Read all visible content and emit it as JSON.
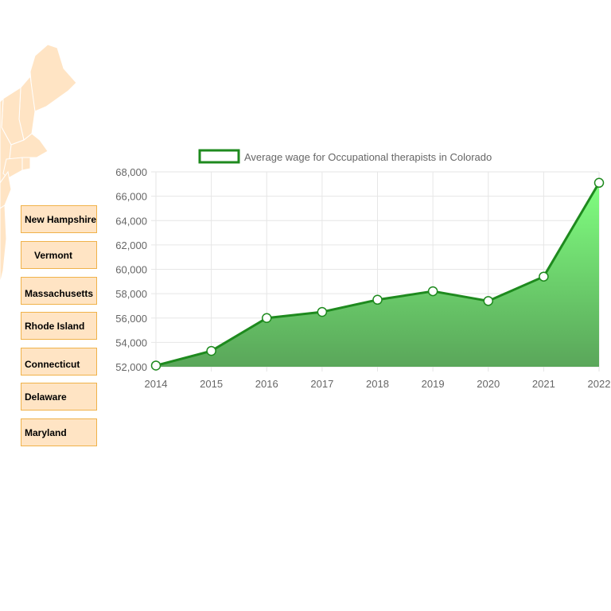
{
  "colors": {
    "map_fill": "#ffe4c4",
    "map_stroke": "#ffffff",
    "label_bg": "#ffe4c4",
    "label_border": "#f0b24a",
    "line": "#1e8a1e",
    "area_top": "#80ff80",
    "area_bottom": "#5aa65a",
    "point_fill": "#ffffff",
    "grid": "#e6e6e6"
  },
  "state_labels": [
    {
      "name": "New Hampshire"
    },
    {
      "name": "Vermont"
    },
    {
      "name": "Massachusetts"
    },
    {
      "name": "Rhode Island"
    },
    {
      "name": "Connecticut"
    },
    {
      "name": "Delaware"
    },
    {
      "name": "Maryland"
    }
  ],
  "chart_data": {
    "type": "area",
    "legend_position": "top",
    "grid": true,
    "categories": [
      "2014",
      "2015",
      "2016",
      "2017",
      "2018",
      "2019",
      "2020",
      "2021",
      "2022"
    ],
    "series": [
      {
        "name": "Average wage for Occupational therapists in Colorado",
        "values": [
          52100,
          53300,
          56000,
          56500,
          57500,
          58200,
          57400,
          59400,
          67100
        ]
      }
    ],
    "ylim": [
      52000,
      68000
    ],
    "yticks": [
      "52,000",
      "54,000",
      "56,000",
      "58,000",
      "60,000",
      "62,000",
      "64,000",
      "66,000",
      "68,000"
    ],
    "yticks_values": [
      52000,
      54000,
      56000,
      58000,
      60000,
      62000,
      64000,
      66000,
      68000
    ]
  }
}
